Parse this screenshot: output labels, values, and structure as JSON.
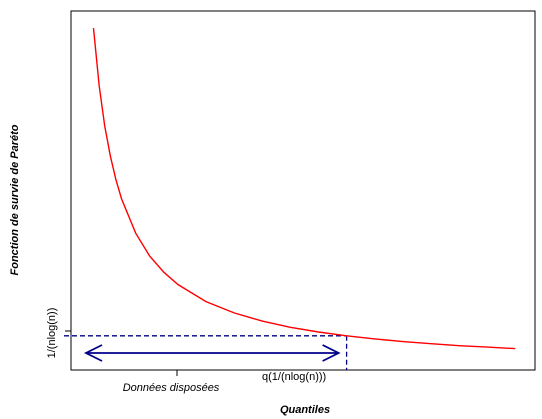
{
  "chart_data": {
    "type": "line",
    "title": "",
    "xlabel": "Quantiles",
    "ylabel": "Fonction de survie de Paréto",
    "grid": false,
    "legend": "none",
    "series": [
      {
        "color": "#ff0000",
        "x": [
          1.0,
          1.2,
          1.4,
          1.6,
          1.8,
          2.0,
          2.5,
          3.0,
          3.5,
          4.0,
          5.0,
          6.0,
          7.0,
          8.0,
          9.0,
          10.0,
          11.0,
          12.0,
          13.0,
          14.0,
          15.0,
          16.0
        ],
        "y": [
          1.0,
          0.833,
          0.714,
          0.625,
          0.556,
          0.5,
          0.4,
          0.333,
          0.286,
          0.25,
          0.2,
          0.167,
          0.143,
          0.125,
          0.111,
          0.1,
          0.091,
          0.083,
          0.077,
          0.071,
          0.067,
          0.0625
        ]
      }
    ],
    "threshold": {
      "y_label": "1/(nlog(n))",
      "x_label": "q(1/(nlog(n)))",
      "y": 0.1,
      "x": 10.0,
      "color": "#00008b"
    },
    "range_annotation": {
      "label": "Données disposées",
      "color": "#00008b"
    },
    "xlim": [
      0.2,
      16.7
    ],
    "ylim": [
      0.0,
      1.05
    ]
  }
}
